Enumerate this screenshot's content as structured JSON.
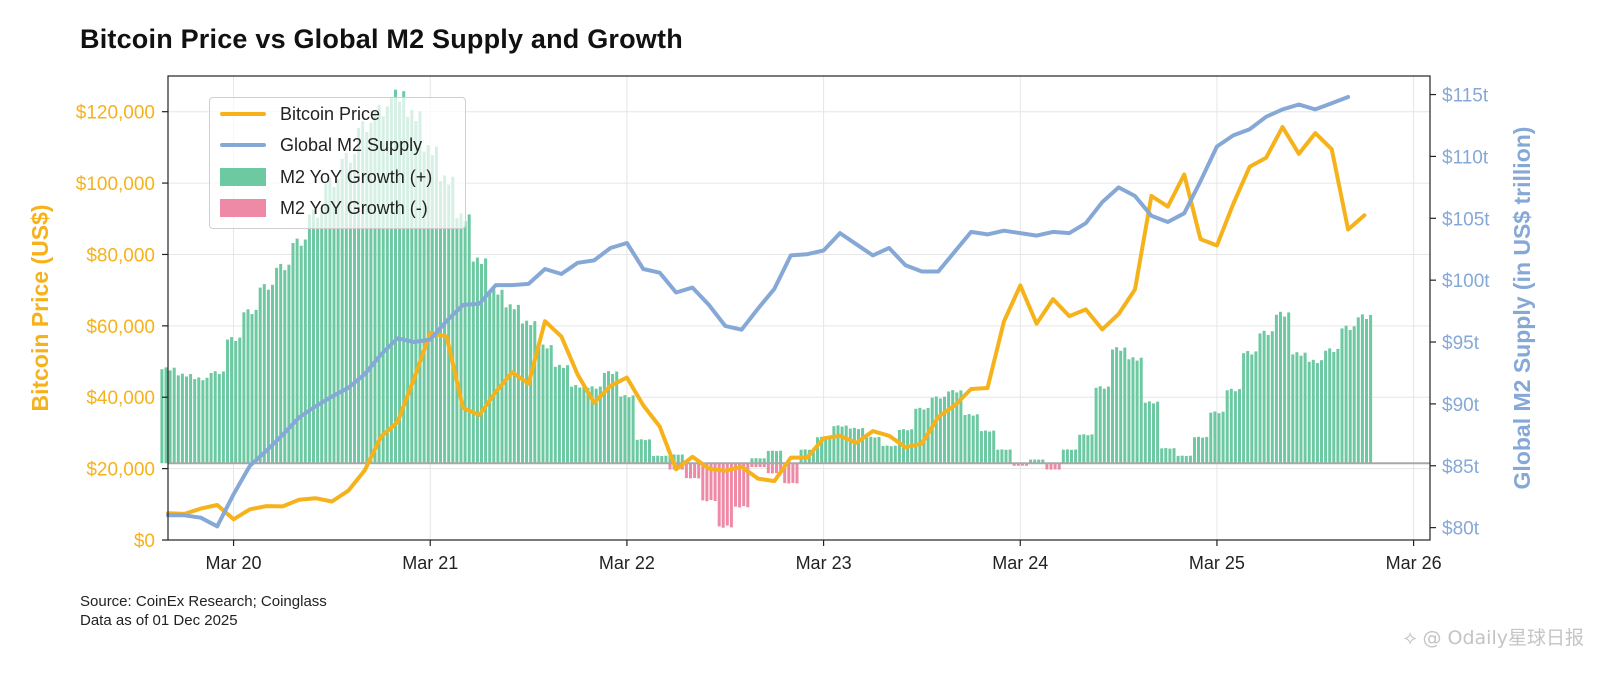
{
  "title": "Bitcoin Price vs Global M2 Supply and Growth",
  "source_line1": "Source: CoinEx Research; Coinglass",
  "source_line2": "Data as of 01 Dec 2025",
  "watermark": "⟡ @ Odaily星球日报",
  "colors": {
    "btc": "#f6b21b",
    "m2": "#86a8d7",
    "pos": "#6cc9a1",
    "neg": "#ee8aa6",
    "axis_left": "#f6b21b",
    "axis_right": "#86a8d7"
  },
  "chart_data": {
    "type": "line",
    "title": "Bitcoin Price vs Global M2 Supply and Growth",
    "x_ticks": [
      "Mar 20",
      "Mar 21",
      "Mar 22",
      "Mar 23",
      "Mar 24",
      "Mar 25",
      "Mar 26"
    ],
    "x_range": [
      "2019-11",
      "2026-04"
    ],
    "y_left": {
      "label": "Bitcoin Price (US$)",
      "range": [
        0,
        130000
      ],
      "ticks": [
        0,
        20000,
        40000,
        60000,
        80000,
        100000,
        120000
      ],
      "tick_labels": [
        "$0",
        "$20,000",
        "$40,000",
        "$60,000",
        "$80,000",
        "$100,000",
        "$120,000"
      ]
    },
    "y_right": {
      "label": "Global M2 Supply (in US$ trillion)",
      "range": [
        79,
        116.5
      ],
      "ticks": [
        80,
        85,
        90,
        95,
        100,
        105,
        110,
        115
      ],
      "tick_labels": [
        "$80t",
        "$85t",
        "$90t",
        "$95t",
        "$100t",
        "$105t",
        "$110t",
        "$115t"
      ]
    },
    "zero_line_m2": 85.2,
    "grid": true,
    "legend_position": "top-left",
    "legend": [
      "Bitcoin Price",
      "Global M2 Supply",
      "M2 YoY Growth (+)",
      "M2 YoY Growth (-)"
    ],
    "series": [
      {
        "name": "Bitcoin Price",
        "axis": "left",
        "points": [
          [
            "2019-11",
            7500
          ],
          [
            "2019-12",
            7300
          ],
          [
            "2020-01",
            8800
          ],
          [
            "2020-02",
            9800
          ],
          [
            "2020-03",
            5800
          ],
          [
            "2020-04",
            8600
          ],
          [
            "2020-05",
            9500
          ],
          [
            "2020-06",
            9400
          ],
          [
            "2020-07",
            11300
          ],
          [
            "2020-08",
            11700
          ],
          [
            "2020-09",
            10800
          ],
          [
            "2020-10",
            13800
          ],
          [
            "2020-11",
            19500
          ],
          [
            "2020-12",
            29000
          ],
          [
            "2021-01",
            33000
          ],
          [
            "2021-02",
            45000
          ],
          [
            "2021-03",
            58000
          ],
          [
            "2021-04",
            57000
          ],
          [
            "2021-05",
            37000
          ],
          [
            "2021-06",
            35000
          ],
          [
            "2021-07",
            41500
          ],
          [
            "2021-08",
            47000
          ],
          [
            "2021-09",
            43800
          ],
          [
            "2021-10",
            61300
          ],
          [
            "2021-11",
            57000
          ],
          [
            "2021-12",
            46300
          ],
          [
            "2022-01",
            38500
          ],
          [
            "2022-02",
            43200
          ],
          [
            "2022-03",
            45500
          ],
          [
            "2022-04",
            37700
          ],
          [
            "2022-05",
            31800
          ],
          [
            "2022-06",
            19800
          ],
          [
            "2022-07",
            23300
          ],
          [
            "2022-08",
            20000
          ],
          [
            "2022-09",
            19400
          ],
          [
            "2022-10",
            20500
          ],
          [
            "2022-11",
            17200
          ],
          [
            "2022-12",
            16500
          ],
          [
            "2023-01",
            23100
          ],
          [
            "2023-02",
            23100
          ],
          [
            "2023-03",
            28500
          ],
          [
            "2023-04",
            29200
          ],
          [
            "2023-05",
            27200
          ],
          [
            "2023-06",
            30500
          ],
          [
            "2023-07",
            29200
          ],
          [
            "2023-08",
            26000
          ],
          [
            "2023-09",
            27000
          ],
          [
            "2023-10",
            34500
          ],
          [
            "2023-11",
            37700
          ],
          [
            "2023-12",
            42300
          ],
          [
            "2024-01",
            42600
          ],
          [
            "2024-02",
            61200
          ],
          [
            "2024-03",
            71300
          ],
          [
            "2024-04",
            60600
          ],
          [
            "2024-05",
            67500
          ],
          [
            "2024-06",
            62700
          ],
          [
            "2024-07",
            64600
          ],
          [
            "2024-08",
            59000
          ],
          [
            "2024-09",
            63300
          ],
          [
            "2024-10",
            70200
          ],
          [
            "2024-11",
            96400
          ],
          [
            "2024-12",
            93400
          ],
          [
            "2025-01",
            102400
          ],
          [
            "2025-02",
            84300
          ],
          [
            "2025-03",
            82500
          ],
          [
            "2025-04",
            94200
          ],
          [
            "2025-05",
            104600
          ],
          [
            "2025-06",
            107100
          ],
          [
            "2025-07",
            115700
          ],
          [
            "2025-08",
            108200
          ],
          [
            "2025-09",
            114000
          ],
          [
            "2025-10",
            109500
          ],
          [
            "2025-11",
            87000
          ],
          [
            "2025-12",
            91000
          ]
        ]
      },
      {
        "name": "Global M2 Supply",
        "axis": "right",
        "points": [
          [
            "2019-11",
            81.0
          ],
          [
            "2019-12",
            81.0
          ],
          [
            "2020-01",
            80.8
          ],
          [
            "2020-02",
            80.1
          ],
          [
            "2020-03",
            82.7
          ],
          [
            "2020-04",
            85.0
          ],
          [
            "2020-05",
            86.2
          ],
          [
            "2020-06",
            87.5
          ],
          [
            "2020-07",
            88.9
          ],
          [
            "2020-08",
            89.8
          ],
          [
            "2020-09",
            90.6
          ],
          [
            "2020-10",
            91.3
          ],
          [
            "2020-11",
            92.4
          ],
          [
            "2020-12",
            94.0
          ],
          [
            "2021-01",
            95.3
          ],
          [
            "2021-02",
            95.0
          ],
          [
            "2021-03",
            95.2
          ],
          [
            "2021-04",
            96.7
          ],
          [
            "2021-05",
            98.0
          ],
          [
            "2021-06",
            98.1
          ],
          [
            "2021-07",
            99.6
          ],
          [
            "2021-08",
            99.6
          ],
          [
            "2021-09",
            99.7
          ],
          [
            "2021-10",
            100.9
          ],
          [
            "2021-11",
            100.5
          ],
          [
            "2021-12",
            101.4
          ],
          [
            "2022-01",
            101.6
          ],
          [
            "2022-02",
            102.6
          ],
          [
            "2022-03",
            103.0
          ],
          [
            "2022-04",
            100.9
          ],
          [
            "2022-05",
            100.6
          ],
          [
            "2022-06",
            99.0
          ],
          [
            "2022-07",
            99.4
          ],
          [
            "2022-08",
            98.0
          ],
          [
            "2022-09",
            96.3
          ],
          [
            "2022-10",
            96.0
          ],
          [
            "2022-11",
            97.7
          ],
          [
            "2022-12",
            99.3
          ],
          [
            "2023-01",
            102.0
          ],
          [
            "2023-02",
            102.1
          ],
          [
            "2023-03",
            102.4
          ],
          [
            "2023-04",
            103.8
          ],
          [
            "2023-05",
            102.9
          ],
          [
            "2023-06",
            102.0
          ],
          [
            "2023-07",
            102.6
          ],
          [
            "2023-08",
            101.2
          ],
          [
            "2023-09",
            100.7
          ],
          [
            "2023-10",
            100.7
          ],
          [
            "2023-11",
            102.3
          ],
          [
            "2023-12",
            103.9
          ],
          [
            "2024-01",
            103.7
          ],
          [
            "2024-02",
            104.0
          ],
          [
            "2024-03",
            103.8
          ],
          [
            "2024-04",
            103.6
          ],
          [
            "2024-05",
            103.9
          ],
          [
            "2024-06",
            103.8
          ],
          [
            "2024-07",
            104.6
          ],
          [
            "2024-08",
            106.3
          ],
          [
            "2024-09",
            107.5
          ],
          [
            "2024-10",
            106.8
          ],
          [
            "2024-11",
            105.2
          ],
          [
            "2024-12",
            104.7
          ],
          [
            "2025-01",
            105.4
          ],
          [
            "2025-02",
            108.0
          ],
          [
            "2025-03",
            110.8
          ],
          [
            "2025-04",
            111.7
          ],
          [
            "2025-05",
            112.2
          ],
          [
            "2025-06",
            113.2
          ],
          [
            "2025-07",
            113.8
          ],
          [
            "2025-08",
            114.2
          ],
          [
            "2025-09",
            113.8
          ],
          [
            "2025-10",
            114.3
          ],
          [
            "2025-11",
            114.8
          ]
        ]
      },
      {
        "name": "M2 YoY Growth (+)",
        "axis": "right",
        "type": "bar",
        "bar_top_m2": [
          [
            "2019-11",
            92.8
          ],
          [
            "2019-12",
            92.3
          ],
          [
            "2020-01",
            92.0
          ],
          [
            "2020-02",
            92.5
          ],
          [
            "2020-03",
            95.2
          ],
          [
            "2020-04",
            97.4
          ],
          [
            "2020-05",
            99.4
          ],
          [
            "2020-06",
            101.0
          ],
          [
            "2020-07",
            103.0
          ],
          [
            "2020-08",
            105.3
          ],
          [
            "2020-09",
            107.8
          ],
          [
            "2020-10",
            109.8
          ],
          [
            "2020-11",
            112.3
          ],
          [
            "2020-12",
            113.6
          ],
          [
            "2021-01",
            114.8
          ],
          [
            "2021-02",
            113.2
          ],
          [
            "2021-03",
            110.4
          ],
          [
            "2021-04",
            108.0
          ],
          [
            "2021-05",
            105.0
          ],
          [
            "2021-06",
            101.5
          ],
          [
            "2021-07",
            99.0
          ],
          [
            "2021-08",
            97.8
          ],
          [
            "2021-09",
            96.5
          ],
          [
            "2021-10",
            94.6
          ],
          [
            "2021-11",
            93.0
          ],
          [
            "2021-12",
            91.4
          ],
          [
            "2022-01",
            91.3
          ],
          [
            "2022-02",
            92.5
          ],
          [
            "2022-03",
            90.6
          ],
          [
            "2022-04",
            87.1
          ],
          [
            "2022-05",
            85.8
          ],
          [
            "2022-06",
            85.9
          ],
          [
            "2022-11",
            85.6
          ],
          [
            "2022-12",
            86.2
          ],
          [
            "2023-02",
            86.3
          ],
          [
            "2023-03",
            87.3
          ],
          [
            "2023-04",
            88.2
          ],
          [
            "2023-05",
            88.0
          ],
          [
            "2023-06",
            87.3
          ],
          [
            "2023-07",
            86.6
          ],
          [
            "2023-08",
            87.9
          ],
          [
            "2023-09",
            89.6
          ],
          [
            "2023-10",
            90.5
          ],
          [
            "2023-11",
            91.0
          ],
          [
            "2023-12",
            89.1
          ],
          [
            "2024-01",
            87.8
          ],
          [
            "2024-02",
            86.3
          ],
          [
            "2024-04",
            85.5
          ],
          [
            "2024-06",
            86.3
          ],
          [
            "2024-07",
            87.5
          ],
          [
            "2024-08",
            91.3
          ],
          [
            "2024-09",
            94.4
          ],
          [
            "2024-10",
            93.6
          ],
          [
            "2024-11",
            90.1
          ],
          [
            "2024-12",
            86.4
          ],
          [
            "2025-01",
            85.8
          ],
          [
            "2025-02",
            87.3
          ],
          [
            "2025-03",
            89.3
          ],
          [
            "2025-04",
            91.1
          ],
          [
            "2025-05",
            94.1
          ],
          [
            "2025-06",
            95.7
          ],
          [
            "2025-07",
            97.2
          ],
          [
            "2025-08",
            94.0
          ],
          [
            "2025-09",
            93.4
          ],
          [
            "2025-10",
            94.3
          ],
          [
            "2025-11",
            96.1
          ],
          [
            "2025-12",
            97.0
          ]
        ]
      },
      {
        "name": "M2 YoY Growth (-)",
        "axis": "right",
        "type": "bar",
        "bar_bottom_m2": [
          [
            "2022-06",
            84.7
          ],
          [
            "2022-07",
            84.0
          ],
          [
            "2022-08",
            82.2
          ],
          [
            "2022-09",
            80.1
          ],
          [
            "2022-10",
            81.7
          ],
          [
            "2022-11",
            84.9
          ],
          [
            "2022-12",
            84.4
          ],
          [
            "2023-01",
            83.6
          ],
          [
            "2024-03",
            85.0
          ],
          [
            "2024-05",
            84.7
          ]
        ]
      }
    ]
  }
}
